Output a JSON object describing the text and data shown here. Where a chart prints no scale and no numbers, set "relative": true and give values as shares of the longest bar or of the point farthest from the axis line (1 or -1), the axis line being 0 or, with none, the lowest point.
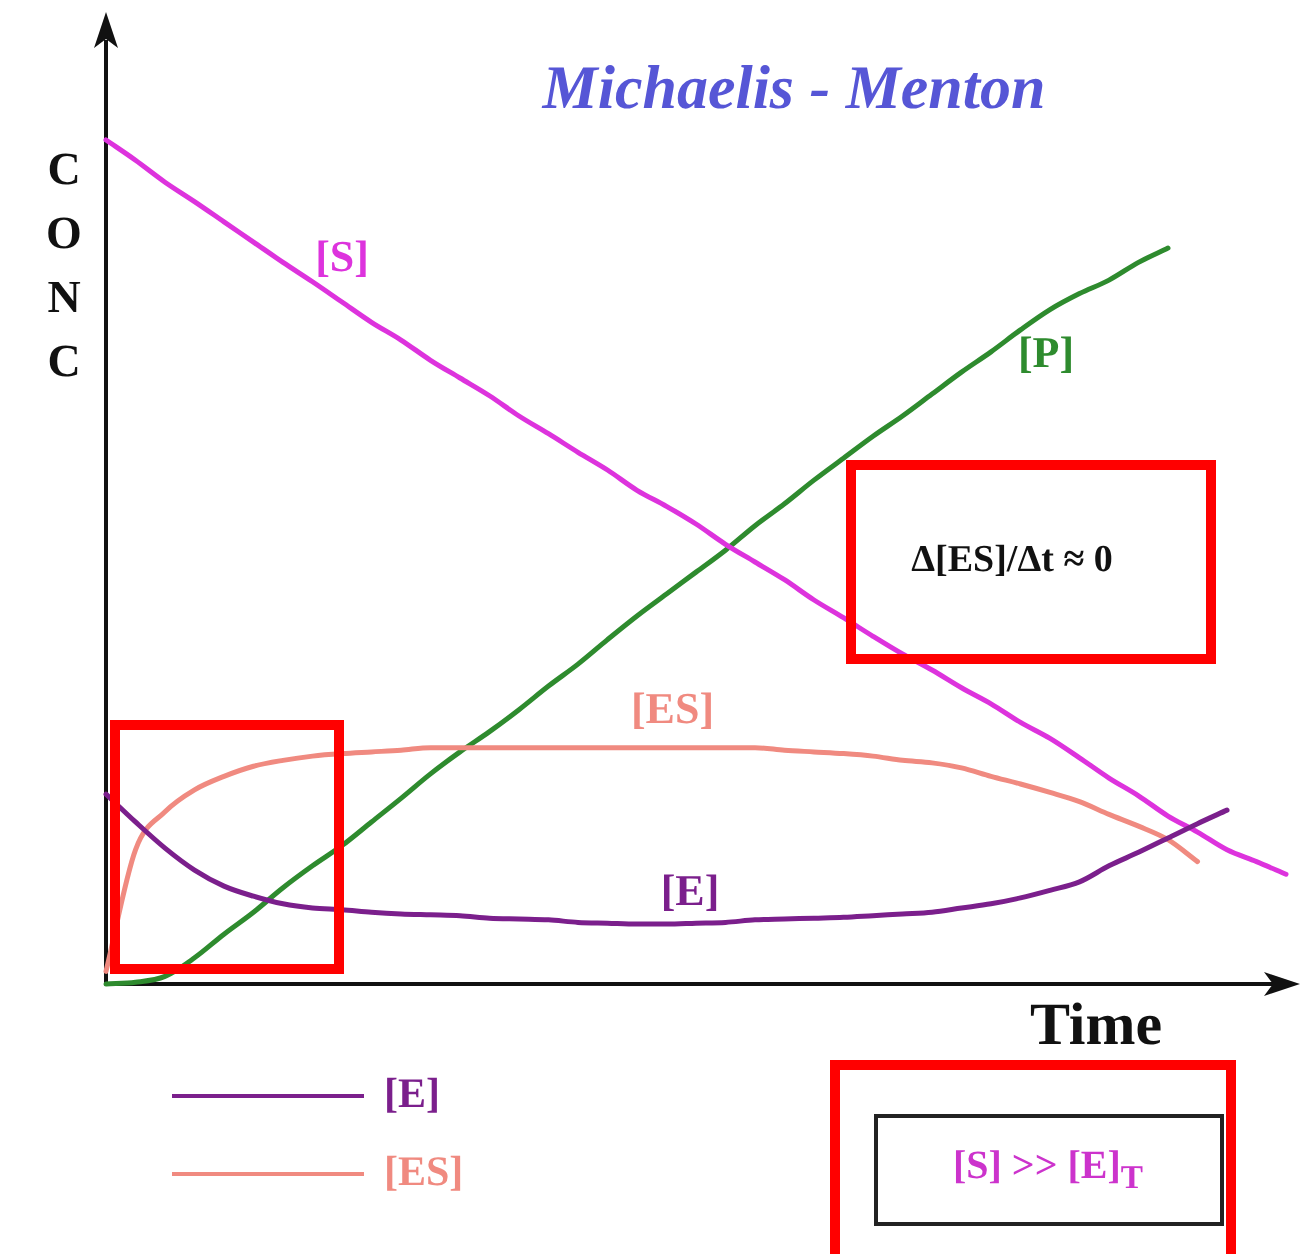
{
  "chart_data": {
    "type": "line",
    "title": "Michaelis - Menton",
    "xlabel": "Time",
    "ylabel": "CONC",
    "relative": true,
    "tick_labels": false,
    "legend": "bottom left",
    "categories": [
      null,
      null,
      null,
      null,
      null,
      null,
      null,
      null,
      null,
      null,
      null,
      null,
      null,
      null,
      null,
      null,
      null,
      null,
      null,
      null,
      null,
      null,
      null,
      null,
      null,
      null,
      null,
      null,
      null,
      null,
      null,
      null,
      null,
      null,
      null,
      null,
      null,
      null,
      null,
      null,
      null
    ],
    "series": [
      {
        "name": "[E]",
        "color": "#7b1f8c",
        "values": [
          0.225,
          0.192,
          0.161,
          0.135,
          0.116,
          0.104,
          0.095,
          0.09,
          0.088,
          0.085,
          0.083,
          0.082,
          0.081,
          0.078,
          0.077,
          0.076,
          0.073,
          0.072,
          0.071,
          0.071,
          0.072,
          0.073,
          0.076,
          0.077,
          0.078,
          0.079,
          0.081,
          0.083,
          0.085,
          0.09,
          0.095,
          0.102,
          0.111,
          0.121,
          0.14,
          0.156,
          0.173,
          0.19,
          0.206,
          null,
          null
        ]
      },
      {
        "name": "[ES]",
        "color": "#f08a80",
        "values": [
          0.015,
          0.159,
          0.204,
          0.23,
          0.246,
          0.258,
          0.265,
          0.27,
          0.273,
          0.275,
          0.277,
          0.28,
          0.28,
          0.28,
          0.28,
          0.28,
          0.28,
          0.28,
          0.28,
          0.28,
          0.28,
          0.28,
          0.28,
          0.277,
          0.275,
          0.273,
          0.27,
          0.265,
          0.262,
          0.256,
          0.246,
          0.237,
          0.227,
          0.216,
          0.201,
          0.187,
          0.171,
          0.145,
          null,
          null,
          null
        ]
      },
      {
        "name": "[S]",
        "color": "#dd33dd",
        "values": [
          1.0,
          0.976,
          0.95,
          0.927,
          0.903,
          0.879,
          0.855,
          0.832,
          0.808,
          0.784,
          0.763,
          0.739,
          0.718,
          0.697,
          0.673,
          0.652,
          0.63,
          0.609,
          0.585,
          0.566,
          0.545,
          0.521,
          0.5,
          0.479,
          0.455,
          0.434,
          0.412,
          0.391,
          0.372,
          0.351,
          0.332,
          0.31,
          0.291,
          0.268,
          0.244,
          0.223,
          0.199,
          0.18,
          0.159,
          0.145,
          0.13
        ]
      },
      {
        "name": "[P]",
        "color": "#2e8b2e",
        "values": [
          0,
          0.002,
          0.009,
          0.031,
          0.059,
          0.085,
          0.114,
          0.14,
          0.164,
          0.192,
          0.22,
          0.249,
          0.275,
          0.299,
          0.325,
          0.353,
          0.379,
          0.408,
          0.436,
          0.462,
          0.488,
          0.514,
          0.543,
          0.569,
          0.597,
          0.623,
          0.649,
          0.673,
          0.699,
          0.725,
          0.749,
          0.775,
          0.799,
          0.818,
          0.834,
          0.855,
          0.872,
          null,
          null,
          null,
          null
        ]
      }
    ],
    "annotations": [
      "Δ[ES]/Δt ≈ 0",
      "[S] >> [E]$_{T}$"
    ]
  }
}
